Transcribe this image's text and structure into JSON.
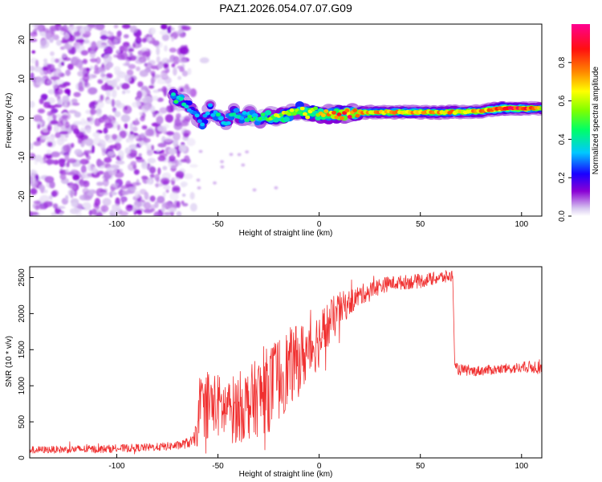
{
  "figure_title": "PAZ1.2026.054.07.07.G09",
  "chart_data": [
    {
      "type": "heatmap",
      "title": "PAZ1.2026.054.07.07.G09",
      "xlabel": "Height of straight line (km)",
      "ylabel": "Frequency (Hz)",
      "xlim": [
        -143,
        110
      ],
      "ylim": [
        -25,
        24
      ],
      "x_ticks": [
        -100,
        -50,
        0,
        50,
        100
      ],
      "y_ticks": [
        -20,
        -10,
        0,
        10,
        20
      ],
      "x_tick_labels": [
        "-100",
        "-50",
        "0",
        "50",
        "100"
      ],
      "y_tick_labels": [
        "-20",
        "-10",
        "0",
        "10",
        "20"
      ],
      "colorbar": {
        "label": "Normalized spectral amplitude",
        "range": [
          0,
          1
        ],
        "ticks": [
          0.0,
          0.2,
          0.4,
          0.6,
          0.8
        ],
        "tick_labels": [
          "0.0",
          "0.2",
          "0.4",
          "0.6",
          "0.8"
        ],
        "colors": [
          "#d8c8f0",
          "#8a00d4",
          "#1a00ff",
          "#00c8ff",
          "#00ff66",
          "#7fff00",
          "#ffff00",
          "#ff8800",
          "#ff1010",
          "#ff0090"
        ]
      },
      "ridge": {
        "x": [
          -72,
          -66,
          -62,
          -58,
          -54,
          -50,
          -46,
          -42,
          -38,
          -34,
          -30,
          -26,
          -22,
          -18,
          -14,
          -10,
          -6,
          -2,
          2,
          6,
          10,
          14,
          18,
          22,
          30,
          40,
          50,
          60,
          70,
          80,
          90,
          100,
          110
        ],
        "freq": [
          5.5,
          4.0,
          1.5,
          -1.5,
          2.5,
          0.5,
          -1.0,
          1.5,
          0.0,
          1.0,
          -0.5,
          0.5,
          0.0,
          0.5,
          1.0,
          2.5,
          1.0,
          1.5,
          0.5,
          1.0,
          1.0,
          1.0,
          1.5,
          1.5,
          1.5,
          1.5,
          1.5,
          1.5,
          1.6,
          1.8,
          2.5,
          2.5,
          2.5
        ],
        "amplitude": [
          0.45,
          0.35,
          0.3,
          0.35,
          0.3,
          0.4,
          0.35,
          0.4,
          0.35,
          0.45,
          0.4,
          0.5,
          0.55,
          0.6,
          0.65,
          0.55,
          0.6,
          0.6,
          0.65,
          0.7,
          0.8,
          0.9,
          0.75,
          0.7,
          0.7,
          0.72,
          0.72,
          0.72,
          0.7,
          0.7,
          0.9,
          0.85,
          0.6
        ]
      },
      "noise_region": {
        "x_range": [
          -143,
          -65
        ],
        "freq_range": [
          -25,
          24
        ],
        "amplitude_range": [
          0.0,
          0.15
        ]
      }
    },
    {
      "type": "line",
      "xlabel": "Height of straight line (km)",
      "ylabel": "SNR (10 * v/v)",
      "xlim": [
        -143,
        110
      ],
      "ylim": [
        0,
        2650
      ],
      "x_ticks": [
        -100,
        -50,
        0,
        50,
        100
      ],
      "y_ticks": [
        0,
        500,
        1000,
        1500,
        2000,
        2500
      ],
      "x_tick_labels": [
        "-100",
        "-50",
        "0",
        "50",
        "100"
      ],
      "y_tick_labels": [
        "0",
        "500",
        "1000",
        "1500",
        "2000",
        "2500"
      ],
      "series": [
        {
          "name": "SNR",
          "color": "#f03030",
          "x": [
            -143,
            -130,
            -120,
            -110,
            -100,
            -90,
            -80,
            -70,
            -62,
            -60,
            -58,
            -55,
            -50,
            -45,
            -40,
            -35,
            -30,
            -25,
            -20,
            -15,
            -10,
            -5,
            0,
            5,
            10,
            15,
            20,
            25,
            30,
            35,
            40,
            45,
            50,
            55,
            60,
            66,
            67,
            70,
            75,
            80,
            85,
            90,
            95,
            100,
            105,
            110
          ],
          "y": [
            110,
            115,
            120,
            120,
            130,
            140,
            150,
            170,
            230,
            450,
            700,
            750,
            720,
            650,
            700,
            750,
            850,
            950,
            1100,
            1250,
            1350,
            1500,
            1650,
            1850,
            2050,
            2150,
            2250,
            2320,
            2380,
            2420,
            2430,
            2440,
            2450,
            2480,
            2500,
            2520,
            1240,
            1220,
            1200,
            1210,
            1220,
            1230,
            1240,
            1250,
            1260,
            1270
          ],
          "noise_amplitude": [
            50,
            50,
            55,
            55,
            55,
            55,
            55,
            60,
            80,
            300,
            400,
            500,
            450,
            450,
            500,
            500,
            550,
            600,
            600,
            550,
            500,
            450,
            400,
            350,
            250,
            180,
            150,
            120,
            120,
            100,
            100,
            100,
            100,
            90,
            90,
            90,
            80,
            80,
            70,
            70,
            70,
            70,
            70,
            80,
            90,
            100
          ]
        }
      ]
    }
  ]
}
